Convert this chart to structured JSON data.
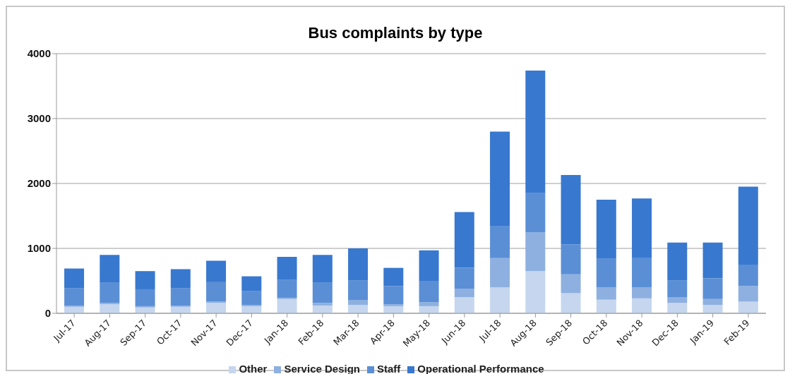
{
  "chart_data": {
    "type": "bar",
    "title": "Bus complaints by type",
    "stacked": true,
    "categories": [
      "Jul-17",
      "Aug-17",
      "Sep-17",
      "Oct-17",
      "Nov-17",
      "Dec-17",
      "Jan-18",
      "Feb-18",
      "Mar-18",
      "Apr-18",
      "May-18",
      "Jun-18",
      "Jul-18",
      "Aug-18",
      "Sep-18",
      "Oct-18",
      "Nov-18",
      "Dec-18",
      "Jan-19",
      "Feb-19"
    ],
    "series": [
      {
        "name": "Other",
        "color": "#c5d6ee",
        "values": [
          100,
          140,
          90,
          100,
          160,
          110,
          220,
          120,
          130,
          110,
          110,
          250,
          400,
          650,
          310,
          210,
          230,
          160,
          130,
          180
        ]
      },
      {
        "name": "Service Design",
        "color": "#8eb0e0",
        "values": [
          20,
          20,
          20,
          20,
          20,
          20,
          20,
          40,
          70,
          30,
          60,
          130,
          450,
          600,
          290,
          190,
          170,
          90,
          90,
          240
        ]
      },
      {
        "name": "Staff",
        "color": "#5a8fd6",
        "values": [
          270,
          310,
          260,
          270,
          300,
          210,
          280,
          310,
          310,
          280,
          330,
          320,
          490,
          600,
          460,
          440,
          460,
          260,
          320,
          330
        ]
      },
      {
        "name": "Operational Performance",
        "color": "#3878cf",
        "values": [
          300,
          430,
          280,
          290,
          330,
          230,
          350,
          430,
          490,
          280,
          470,
          860,
          1460,
          1890,
          1070,
          910,
          910,
          580,
          550,
          1200
        ]
      }
    ],
    "ylim": [
      0,
      4000
    ],
    "yticks": [
      0,
      1000,
      2000,
      3000,
      4000
    ],
    "grid": "y",
    "legend": "bottom"
  }
}
